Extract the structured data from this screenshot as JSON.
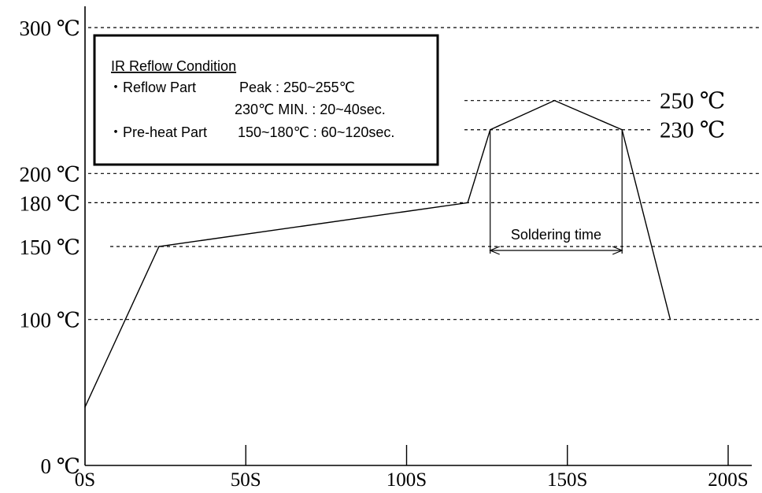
{
  "chart_data": {
    "type": "line",
    "title": "",
    "xlabel": "",
    "ylabel": "",
    "xlim": [
      0,
      200
    ],
    "ylim": [
      0,
      300
    ],
    "x_ticks": [
      {
        "value": 0,
        "label": "0S"
      },
      {
        "value": 50,
        "label": "50S"
      },
      {
        "value": 100,
        "label": "100S"
      },
      {
        "value": 150,
        "label": "150S"
      },
      {
        "value": 200,
        "label": "200S"
      }
    ],
    "y_ticks": [
      {
        "value": 0,
        "label": "0 ℃"
      },
      {
        "value": 100,
        "label": "100 ℃"
      },
      {
        "value": 150,
        "label": "150 ℃"
      },
      {
        "value": 180,
        "label": "180 ℃"
      },
      {
        "value": 200,
        "label": "200 ℃"
      },
      {
        "value": 300,
        "label": "300 ℃"
      }
    ],
    "reference_lines": [
      300,
      200,
      180,
      150,
      100
    ],
    "peak_lines": [
      {
        "value": 250,
        "label": "250 ℃"
      },
      {
        "value": 230,
        "label": "230 ℃"
      }
    ],
    "series": [
      {
        "x": [
          0,
          23,
          119,
          126,
          146,
          167,
          182
        ],
        "y": [
          40,
          150,
          180,
          230,
          250,
          230,
          100
        ]
      }
    ],
    "annotation": {
      "label": "Soldering time",
      "from": 126,
      "to": 167
    },
    "legend": {
      "position": "top-left",
      "title": "IR Reflow Condition",
      "lines": [
        "・Reflow Part",
        "Peak : 250~255℃",
        "230℃ MIN. : 20~40sec.",
        "・Pre-heat Part",
        "150~180℃ : 60~120sec."
      ]
    },
    "grid": false
  }
}
